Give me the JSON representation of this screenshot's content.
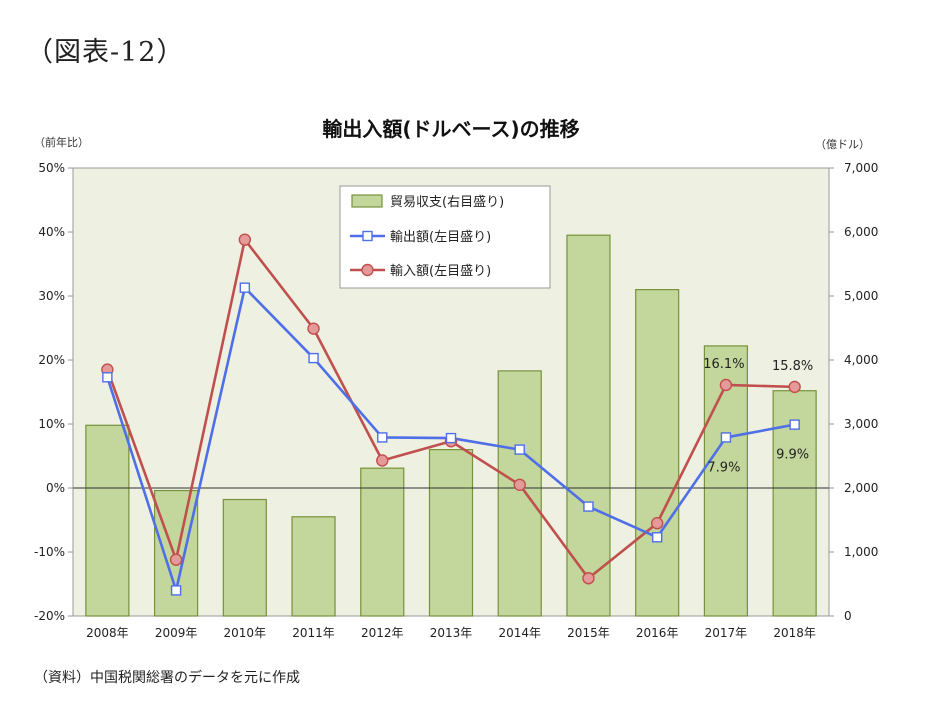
{
  "figure_label": "（図表-12）",
  "source_note": "（資料）中国税関総署のデータを元に作成",
  "colors": {
    "plot_bg": "#eef0e2",
    "bar_fill": "#c3d69b",
    "bar_stroke": "#76923c",
    "export_line": "#4f6fe8",
    "import_line": "#c0504d",
    "import_marker": "#e39a98"
  },
  "chart_data": {
    "type": "bar+line",
    "title": "輸出入額(ドルベース)の推移",
    "left_axis_unit": "（前年比）",
    "right_axis_unit": "（億ドル）",
    "left_ylim": [
      -20,
      50
    ],
    "left_ticks": [
      "50%",
      "40%",
      "30%",
      "20%",
      "10%",
      "0%",
      "-10%",
      "-20%"
    ],
    "right_ylim": [
      0,
      7000
    ],
    "right_ticks": [
      "7,000",
      "6,000",
      "5,000",
      "4,000",
      "3,000",
      "2,000",
      "1,000",
      "0"
    ],
    "grid": false,
    "legend_position": "top-center",
    "categories": [
      "2008年",
      "2009年",
      "2010年",
      "2011年",
      "2012年",
      "2013年",
      "2014年",
      "2015年",
      "2016年",
      "2017年",
      "2018年"
    ],
    "series": [
      {
        "name": "貿易収支(右目盛り)",
        "type": "bar",
        "axis": "right",
        "values": [
          2980,
          1960,
          1820,
          1550,
          2310,
          2600,
          3830,
          5950,
          5100,
          4220,
          3520
        ]
      },
      {
        "name": "輸出額(左目盛り)",
        "type": "line",
        "axis": "left",
        "marker": "square",
        "values": [
          17.3,
          -16.0,
          31.3,
          20.3,
          7.9,
          7.8,
          6.0,
          -2.9,
          -7.7,
          7.9,
          9.9
        ]
      },
      {
        "name": "輸入額(左目盛り)",
        "type": "line",
        "axis": "left",
        "marker": "circle",
        "values": [
          18.5,
          -11.2,
          38.8,
          24.9,
          4.3,
          7.3,
          0.5,
          -14.1,
          -5.5,
          16.1,
          15.8
        ]
      }
    ],
    "annotations": [
      {
        "series": 2,
        "index": 9,
        "text": "16.1%",
        "position": "above"
      },
      {
        "series": 2,
        "index": 10,
        "text": "15.8%",
        "position": "above"
      },
      {
        "series": 1,
        "index": 9,
        "text": "7.9%",
        "position": "below"
      },
      {
        "series": 1,
        "index": 10,
        "text": "9.9%",
        "position": "below"
      }
    ]
  }
}
